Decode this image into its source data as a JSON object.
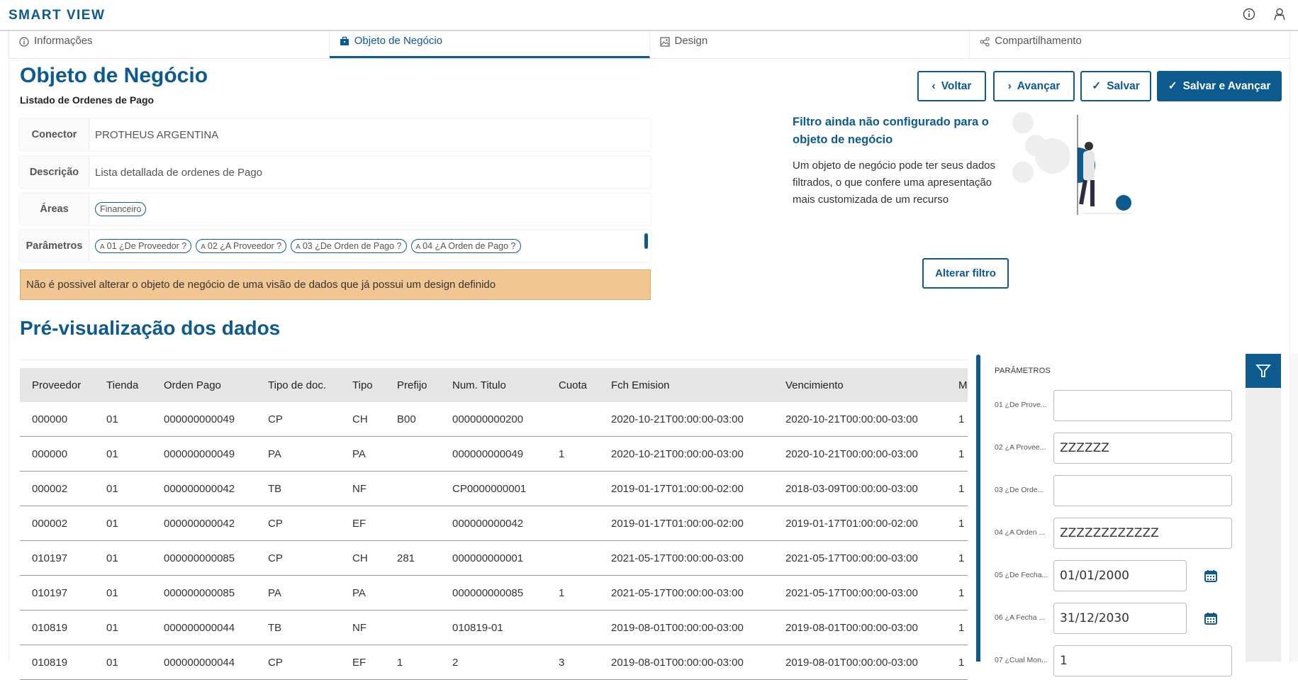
{
  "app": {
    "title": "SMART VIEW"
  },
  "header_icons": [
    "info-icon",
    "user-icon"
  ],
  "tabs": [
    {
      "label": "Informações",
      "icon": "info-icon"
    },
    {
      "label": "Objeto de Negócio",
      "icon": "briefcase-icon",
      "active": true
    },
    {
      "label": "Design",
      "icon": "image-icon"
    },
    {
      "label": "Compartilhamento",
      "icon": "share-icon"
    }
  ],
  "page": {
    "title": "Objeto de Negócio",
    "subtitle": "Listado de Ordenes de Pago"
  },
  "form": {
    "connector_label": "Conector",
    "connector_value": "PROTHEUS ARGENTINA",
    "description_label": "Descrição",
    "description_value": "Lista detallada de ordenes de Pago",
    "areas_label": "Áreas",
    "areas": [
      "Financeiro"
    ],
    "params_label": "Parâmetros",
    "param_type_glyph": "A",
    "params": [
      "01 ¿De Proveedor ?",
      "02 ¿A Proveedor ?",
      "03 ¿De Orden de Pago ?",
      "04 ¿A Orden de Pago ?"
    ]
  },
  "warning": "Não é possivel alterar o objeto de negócio de uma visão de dados que já possui um design definido",
  "actions": {
    "back": "Voltar",
    "next": "Avançar",
    "save": "Salvar",
    "save_next": "Salvar e Avançar"
  },
  "filter": {
    "title": "Filtro ainda não configurado para o objeto de negócio",
    "text": "Um objeto de negócio pode ter seus dados filtrados, o que confere uma apresentação mais customizada de um recurso",
    "button": "Alterar filtro"
  },
  "preview": {
    "title": "Pré-visualização dos dados",
    "columns": [
      "Proveedor",
      "Tienda",
      "Orden Pago",
      "Tipo de doc.",
      "Tipo",
      "Prefijo",
      "Num. Titulo",
      "Cuota",
      "Fch Emision",
      "Vencimiento",
      "M"
    ],
    "rows": [
      [
        "000000",
        "01",
        "000000000049",
        "CP",
        "CH",
        "B00",
        "000000000200",
        "",
        "2020-10-21T00:00:00-03:00",
        "2020-10-21T00:00:00-03:00",
        "1"
      ],
      [
        "000000",
        "01",
        "000000000049",
        "PA",
        "PA",
        "",
        "000000000049",
        "1",
        "2020-10-21T00:00:00-03:00",
        "2020-10-21T00:00:00-03:00",
        "1"
      ],
      [
        "000002",
        "01",
        "000000000042",
        "TB",
        "NF",
        "",
        "CP0000000001",
        "",
        "2019-01-17T01:00:00-02:00",
        "2018-03-09T00:00:00-03:00",
        "1"
      ],
      [
        "000002",
        "01",
        "000000000042",
        "CP",
        "EF",
        "",
        "000000000042",
        "",
        "2019-01-17T01:00:00-02:00",
        "2019-01-17T01:00:00-02:00",
        "1"
      ],
      [
        "010197",
        "01",
        "000000000085",
        "CP",
        "CH",
        "281",
        "000000000001",
        "",
        "2021-05-17T00:00:00-03:00",
        "2021-05-17T00:00:00-03:00",
        "1"
      ],
      [
        "010197",
        "01",
        "000000000085",
        "PA",
        "PA",
        "",
        "000000000085",
        "1",
        "2021-05-17T00:00:00-03:00",
        "2021-05-17T00:00:00-03:00",
        "1"
      ],
      [
        "010819",
        "01",
        "000000000044",
        "TB",
        "NF",
        "",
        "010819-01",
        "",
        "2019-08-01T00:00:00-03:00",
        "2019-08-01T00:00:00-03:00",
        "1"
      ],
      [
        "010819",
        "01",
        "000000000044",
        "CP",
        "EF",
        "1",
        "2",
        "3",
        "2019-08-01T00:00:00-03:00",
        "2019-08-01T00:00:00-03:00",
        "1"
      ]
    ]
  },
  "parameters_panel": {
    "title": "PARÂMETROS",
    "fields": [
      {
        "label": "01 ¿De Prove...",
        "value": ""
      },
      {
        "label": "02 ¿A Provee...",
        "value": "ZZZZZZ"
      },
      {
        "label": "03 ¿De Orde...",
        "value": ""
      },
      {
        "label": "04 ¿A Orden ...",
        "value": "ZZZZZZZZZZZZ"
      },
      {
        "label": "05 ¿De Fecha...",
        "value": "01/01/2000",
        "date": true
      },
      {
        "label": "06 ¿A Fecha ...",
        "value": "31/12/2030",
        "date": true
      },
      {
        "label": "07 ¿Cual Mon...",
        "value": "1"
      }
    ]
  },
  "colors": {
    "primary": "#0c5a8e",
    "warning_bg": "#f2c693",
    "table_header_bg": "#e5e5e5"
  }
}
